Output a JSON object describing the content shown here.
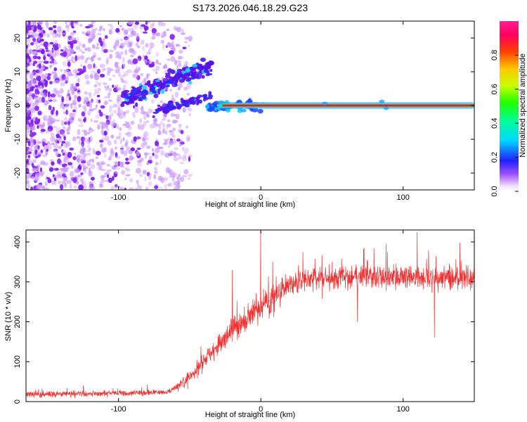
{
  "title": "S173.2026.046.18.29.G23",
  "chart_data": [
    {
      "type": "heatmap",
      "name": "spectrogram",
      "xlabel": "Height of straight line (km)",
      "ylabel": "Frequency (Hz)",
      "xlim": [
        -165,
        150
      ],
      "ylim": [
        -25,
        25
      ],
      "xticks": [
        -100,
        0,
        100
      ],
      "yticks": [
        -20,
        -10,
        0,
        10,
        20
      ],
      "colorbar": {
        "label": "Normalized spectral amplitude",
        "range": [
          0,
          1
        ],
        "ticks": [
          0.0,
          0.2,
          0.4,
          0.6,
          0.8
        ],
        "tick_labels": [
          "0.0",
          "0.2",
          "0.4",
          "0.6",
          "0.8"
        ]
      },
      "features": {
        "noise_region_km": [
          -165,
          -60
        ],
        "diagonal_trend_km": [
          -95,
          -35
        ],
        "diagonal_trend_hz": [
          2,
          12
        ],
        "carrier_line_hz": 0,
        "carrier_start_km": -30,
        "carrier_end_km": 150
      }
    },
    {
      "type": "line",
      "name": "snr",
      "xlabel": "Height of straight line (km)",
      "ylabel": "SNR (10 * v/v)",
      "xlim": [
        -165,
        150
      ],
      "ylim": [
        0,
        430
      ],
      "xticks": [
        -100,
        0,
        100
      ],
      "yticks": [
        0,
        100,
        200,
        300,
        400
      ],
      "color": "#f03030",
      "trend_x": [
        -165,
        -120,
        -80,
        -65,
        -55,
        -45,
        -35,
        -25,
        -15,
        -5,
        5,
        15,
        25,
        40,
        60,
        80,
        100,
        120,
        150
      ],
      "trend_y": [
        18,
        20,
        22,
        25,
        45,
        80,
        120,
        160,
        190,
        220,
        250,
        280,
        300,
        310,
        315,
        315,
        310,
        310,
        310
      ],
      "spikes": [
        {
          "x": -20,
          "y": 330
        },
        {
          "x": 0,
          "y": 430
        },
        {
          "x": 68,
          "y": 200
        },
        {
          "x": 88,
          "y": 395
        },
        {
          "x": 110,
          "y": 425
        },
        {
          "x": 122,
          "y": 160
        },
        {
          "x": 150,
          "y": 265
        }
      ]
    }
  ]
}
